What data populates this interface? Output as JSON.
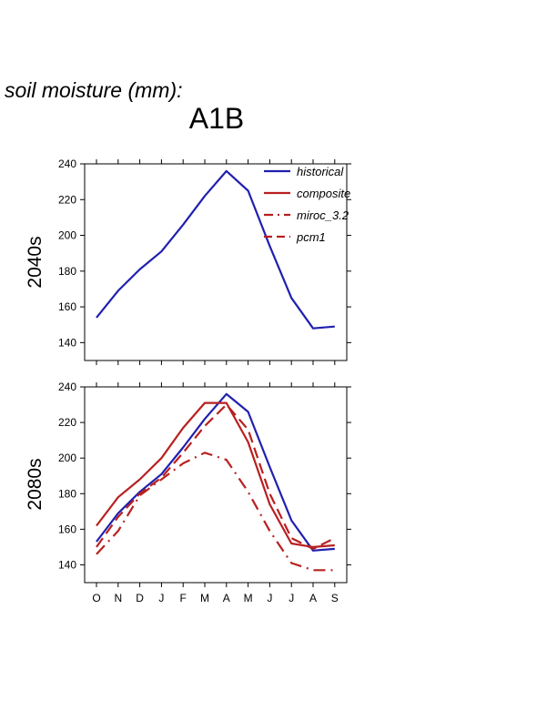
{
  "header": {
    "title": "soil moisture (mm):",
    "scenario": "A1B"
  },
  "chart_data": [
    {
      "type": "line",
      "panel_label": "2040s",
      "categories": [
        "O",
        "N",
        "D",
        "J",
        "F",
        "M",
        "A",
        "M",
        "J",
        "J",
        "A",
        "S"
      ],
      "ylim": [
        130,
        240
      ],
      "yticks": [
        140,
        160,
        180,
        200,
        220,
        240
      ],
      "legend_placement": "top-right",
      "series": [
        {
          "name": "historical",
          "color": "#2020b0",
          "style": "solid",
          "values": [
            154,
            169,
            181,
            191,
            206,
            222,
            236,
            225,
            194,
            165,
            148,
            149
          ]
        }
      ],
      "legend": [
        {
          "name": "historical",
          "color": "#2020b0",
          "style": "solid"
        },
        {
          "name": "composite",
          "color": "#b82020",
          "style": "solid"
        },
        {
          "name": "miroc_3.2",
          "color": "#b82020",
          "style": "dashdot"
        },
        {
          "name": "pcm1",
          "color": "#b82020",
          "style": "dash"
        }
      ]
    },
    {
      "type": "line",
      "panel_label": "2080s",
      "categories": [
        "O",
        "N",
        "D",
        "J",
        "F",
        "M",
        "A",
        "M",
        "J",
        "J",
        "A",
        "S"
      ],
      "ylim": [
        130,
        240
      ],
      "yticks": [
        140,
        160,
        180,
        200,
        220,
        240
      ],
      "series": [
        {
          "name": "historical",
          "color": "#2020b0",
          "style": "solid",
          "values": [
            153,
            169,
            181,
            191,
            206,
            222,
            236,
            226,
            195,
            165,
            148,
            149
          ]
        },
        {
          "name": "composite",
          "color": "#b82020",
          "style": "solid",
          "values": [
            162,
            178,
            188,
            200,
            217,
            231,
            231,
            209,
            174,
            152,
            150,
            151
          ]
        },
        {
          "name": "miroc_3.2",
          "color": "#b82020",
          "style": "dashdot",
          "values": [
            146,
            159,
            179,
            188,
            197,
            203,
            199,
            181,
            159,
            141,
            137,
            137
          ]
        },
        {
          "name": "pcm1",
          "color": "#b82020",
          "style": "dash",
          "values": [
            150,
            167,
            180,
            189,
            203,
            218,
            230,
            216,
            180,
            155,
            149,
            155
          ]
        }
      ]
    }
  ]
}
